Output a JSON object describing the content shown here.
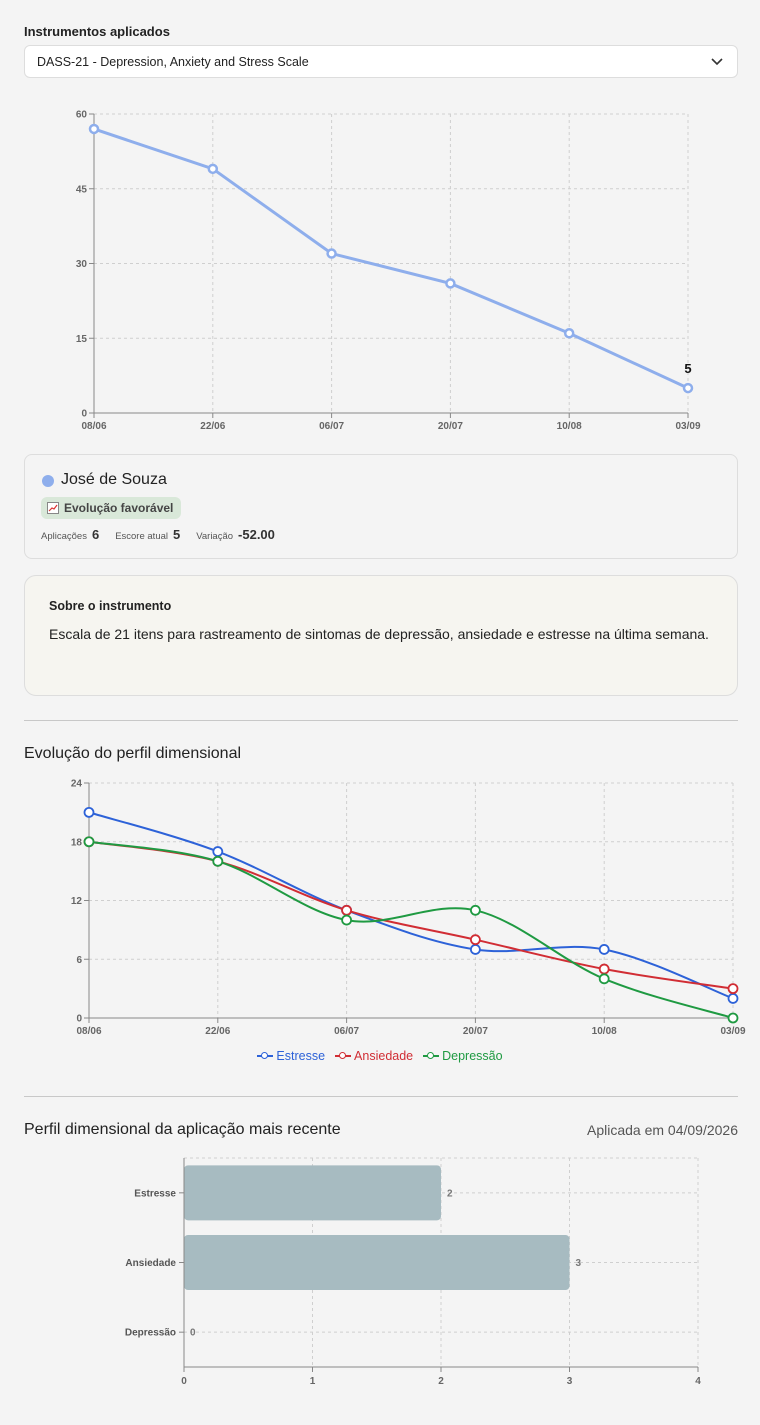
{
  "instrument_label": "Instrumentos aplicados",
  "instrument_select": {
    "value": "DASS-21 - Depression, Anxiety and Stress Scale"
  },
  "patient": {
    "name": "José de Souza",
    "color": "#8eaeec",
    "badge": "Evolução favorável",
    "badge_icon": "chart-trend-icon",
    "stats": [
      {
        "label": "Aplicações",
        "value": "6"
      },
      {
        "label": "Escore atual",
        "value": "5"
      },
      {
        "label": "Variação",
        "value": "-52.00"
      }
    ]
  },
  "about": {
    "title": "Sobre o instrumento",
    "text": "Escala de 21 itens para rastreamento de sintomas de depressão, ansiedade e estresse na última semana."
  },
  "dimensional_title": "Evolução do perfil dimensional",
  "recent_title": "Perfil dimensional da aplicação mais recente",
  "applied_date": "Aplicada em 04/09/2026",
  "chart_data": [
    {
      "type": "line",
      "x": [
        "08/06",
        "22/06",
        "06/07",
        "20/07",
        "10/08",
        "03/09"
      ],
      "series": [
        {
          "values": [
            57,
            49,
            32,
            26,
            16,
            5
          ],
          "color": "#8eaeec"
        }
      ],
      "ylim": [
        0,
        60
      ],
      "yticks": [
        "0",
        "15",
        "30",
        "45",
        "60"
      ],
      "last_point_label": "5",
      "grid": true
    },
    {
      "type": "line",
      "x": [
        "08/06",
        "22/06",
        "06/07",
        "20/07",
        "10/08",
        "03/09"
      ],
      "series": [
        {
          "name": "Estresse",
          "values": [
            21,
            17,
            11,
            7,
            7,
            2
          ],
          "color": "#2d62d8"
        },
        {
          "name": "Ansiedade",
          "values": [
            18,
            16,
            11,
            8,
            5,
            3
          ],
          "color": "#d12d34"
        },
        {
          "name": "Depressão",
          "values": [
            18,
            16,
            10,
            11,
            4,
            0
          ],
          "color": "#1f9a42"
        }
      ],
      "ylim": [
        0,
        24
      ],
      "yticks": [
        "0",
        "6",
        "12",
        "18",
        "24"
      ],
      "legend": "bottom",
      "grid": true
    },
    {
      "type": "bar",
      "orientation": "horizontal",
      "categories": [
        "Estresse",
        "Ansiedade",
        "Depressão"
      ],
      "values": [
        2,
        3,
        0
      ],
      "xlim": [
        0,
        4
      ],
      "xticks": [
        "0",
        "1",
        "2",
        "3",
        "4"
      ],
      "color": "#a7bbc1",
      "grid": true
    }
  ]
}
